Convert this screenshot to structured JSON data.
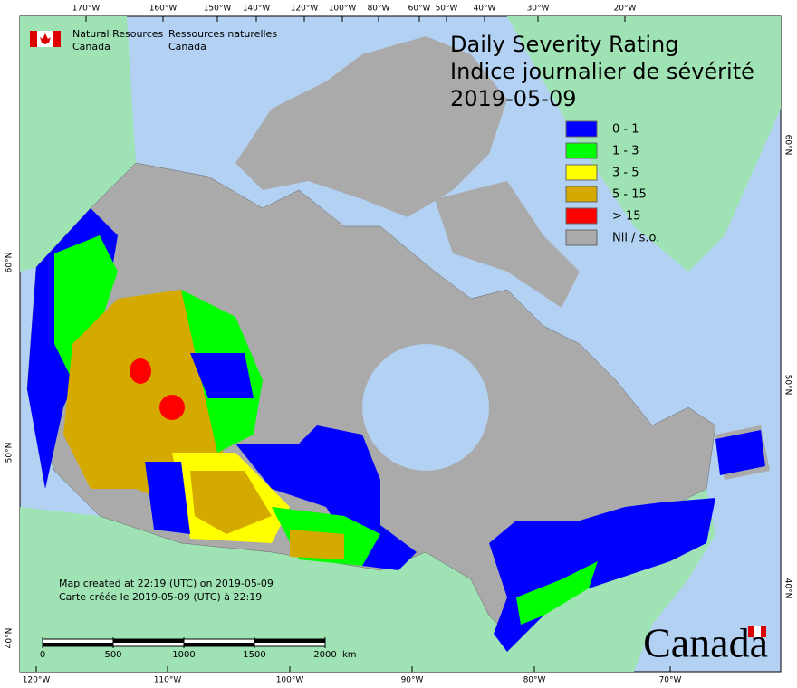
{
  "organization": {
    "english": [
      "Natural Resources",
      "Canada"
    ],
    "french": [
      "Ressources naturelles",
      "Canada"
    ]
  },
  "title": [
    "Daily Severity Rating",
    "Indice journalier de sévérité",
    "2019-05-09"
  ],
  "legend": [
    {
      "label": "0 - 1",
      "color": "#0000ff"
    },
    {
      "label": "1 - 3",
      "color": "#00ff00"
    },
    {
      "label": "3 - 5",
      "color": "#ffff00"
    },
    {
      "label": "5 - 15",
      "color": "#d4aa00"
    },
    {
      "label": "> 15",
      "color": "#ff0000"
    },
    {
      "label": "Nil / s.o.",
      "color": "#aaaaaa"
    }
  ],
  "graticule": {
    "top": [
      "170°W",
      "160°W",
      "150°W",
      "140°W",
      "120°W",
      "100°W",
      "80°W",
      "60°W",
      "50°W",
      "40°W",
      "30°W",
      "20°W"
    ],
    "bottom": [
      "120°W",
      "110°W",
      "100°W",
      "90°W",
      "80°W",
      "70°W"
    ],
    "left": [
      "60°N",
      "50°N",
      "40°N"
    ],
    "right": [
      "60°N",
      "50°N",
      "40°N"
    ]
  },
  "credits": [
    "Map created at 22:19 (UTC) on 2019-05-09",
    "Carte créée le 2019-05-09 (UTC) à 22:19"
  ],
  "scale_bar": {
    "ticks": [
      0,
      500,
      1000,
      1500,
      2000
    ],
    "unit": "km"
  },
  "wordmark": "Canada"
}
